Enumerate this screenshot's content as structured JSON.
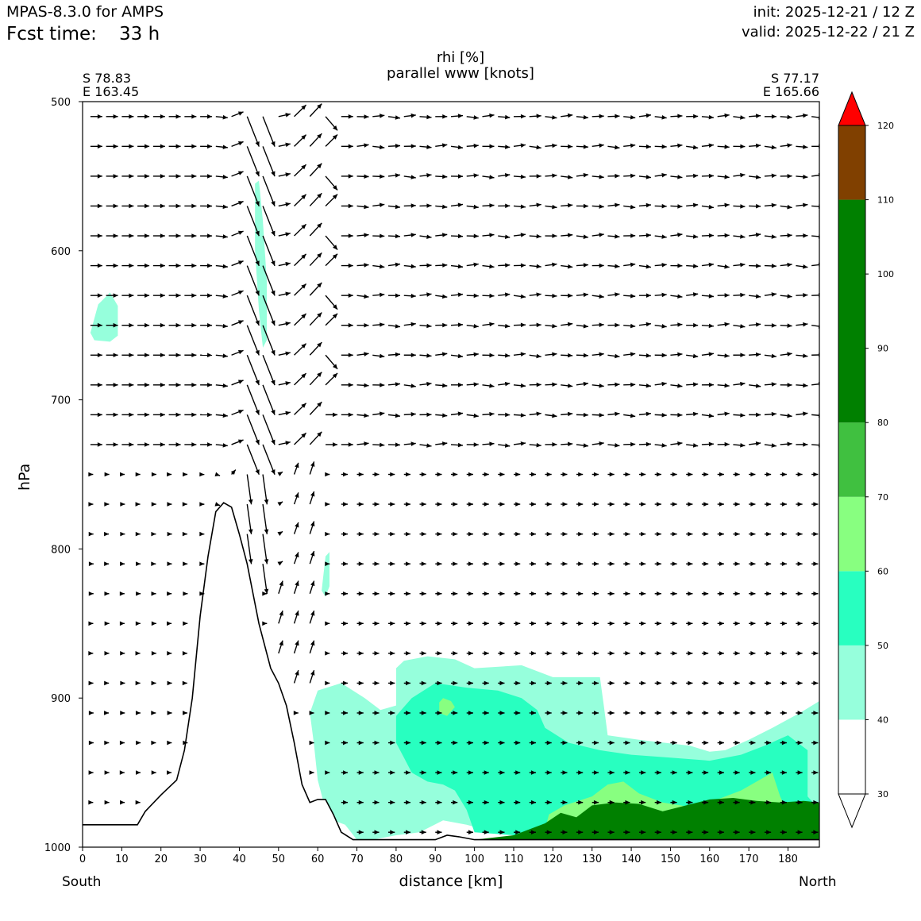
{
  "header": {
    "model": "MPAS-8.3.0 for AMPS",
    "fcst_label": "Fcst time:",
    "fcst_value": "33 h",
    "init": "init: 2025-12-21 / 12 Z",
    "valid": "valid: 2025-12-22 / 21 Z"
  },
  "chart_data": {
    "type": "cross-section",
    "title": "rhi [%]",
    "subtitle": "parallel www [knots]",
    "xlabel": "distance [km]",
    "ylabel": "hPa",
    "xlim": [
      0,
      188
    ],
    "ylim": [
      1000,
      500
    ],
    "x_ticks": [
      0,
      10,
      20,
      30,
      40,
      50,
      60,
      70,
      80,
      90,
      100,
      110,
      120,
      130,
      140,
      150,
      160,
      170,
      180
    ],
    "y_ticks": [
      500,
      600,
      700,
      800,
      900,
      1000
    ],
    "start_label": "South",
    "end_label": "North",
    "start_coord": [
      "S 78.83",
      "E 163.45"
    ],
    "end_coord": [
      "S 77.17",
      "E 165.66"
    ],
    "colorbar": {
      "levels": [
        30,
        40,
        50,
        60,
        70,
        80,
        90,
        100,
        110,
        120
      ],
      "bands": [
        {
          "from": 30,
          "to": 40,
          "color": "#ffffff"
        },
        {
          "from": 40,
          "to": 50,
          "color": "#96ffdc"
        },
        {
          "from": 50,
          "to": 60,
          "color": "#28ffc0"
        },
        {
          "from": 60,
          "to": 70,
          "color": "#88ff80"
        },
        {
          "from": 70,
          "to": 80,
          "color": "#40c040"
        },
        {
          "from": 80,
          "to": 110,
          "color": "#008000"
        },
        {
          "from": 110,
          "to": 120,
          "color": "#804000"
        },
        {
          "from": 120,
          "to": 125,
          "color": "#ff0000"
        }
      ],
      "extend_colors": {
        "low": "#ffffff",
        "high": "#ff0000"
      }
    },
    "terrain": [
      [
        0,
        985
      ],
      [
        14,
        985
      ],
      [
        16,
        976
      ],
      [
        20,
        965
      ],
      [
        24,
        955
      ],
      [
        26,
        935
      ],
      [
        28,
        900
      ],
      [
        30,
        845
      ],
      [
        32,
        805
      ],
      [
        34,
        775
      ],
      [
        36,
        769
      ],
      [
        38,
        772
      ],
      [
        40,
        790
      ],
      [
        42,
        810
      ],
      [
        45,
        850
      ],
      [
        48,
        880
      ],
      [
        50,
        890
      ],
      [
        52,
        905
      ],
      [
        54,
        930
      ],
      [
        56,
        958
      ],
      [
        58,
        970
      ],
      [
        60,
        968
      ],
      [
        62,
        968
      ],
      [
        64,
        978
      ],
      [
        66,
        990
      ],
      [
        69,
        995
      ],
      [
        90,
        995
      ],
      [
        93,
        992
      ],
      [
        96,
        993
      ],
      [
        100,
        995
      ],
      [
        188,
        995
      ]
    ],
    "rh_regions": [
      {
        "value": 45,
        "points": [
          [
            2,
            655
          ],
          [
            4,
            636
          ],
          [
            7,
            628
          ],
          [
            9,
            637
          ],
          [
            9,
            657
          ],
          [
            7,
            661
          ],
          [
            3,
            660
          ]
        ]
      },
      {
        "value": 45,
        "points": [
          [
            44,
            555
          ],
          [
            45,
            553
          ],
          [
            46,
            580
          ],
          [
            47,
            620
          ],
          [
            47,
            660
          ],
          [
            46,
            665
          ],
          [
            45,
            640
          ],
          [
            44,
            600
          ]
        ]
      },
      {
        "value": 45,
        "points": [
          [
            62,
            805
          ],
          [
            63,
            802
          ],
          [
            63,
            825
          ],
          [
            62,
            832
          ],
          [
            61,
            828
          ]
        ]
      },
      {
        "value": 45,
        "points": [
          [
            60,
            895
          ],
          [
            66,
            890
          ],
          [
            72,
            900
          ],
          [
            76,
            908
          ],
          [
            80,
            905
          ],
          [
            80,
            880
          ],
          [
            82,
            875
          ],
          [
            88,
            872
          ],
          [
            95,
            874
          ],
          [
            100,
            880
          ],
          [
            112,
            878
          ],
          [
            120,
            886
          ],
          [
            132,
            886
          ],
          [
            133,
            905
          ],
          [
            134,
            925
          ],
          [
            142,
            928
          ],
          [
            155,
            932
          ],
          [
            160,
            936
          ],
          [
            164,
            935
          ],
          [
            170,
            928
          ],
          [
            176,
            920
          ],
          [
            183,
            910
          ],
          [
            188,
            902
          ],
          [
            188,
            985
          ],
          [
            182,
            990
          ],
          [
            176,
            991
          ],
          [
            140,
            992
          ],
          [
            116,
            990
          ],
          [
            105,
            990
          ],
          [
            98,
            985
          ],
          [
            92,
            982
          ],
          [
            86,
            990
          ],
          [
            80,
            992
          ],
          [
            74,
            995
          ],
          [
            70,
            995
          ],
          [
            67,
            985
          ],
          [
            64,
            982
          ],
          [
            62,
            975
          ],
          [
            60,
            955
          ],
          [
            59,
            930
          ],
          [
            58,
            910
          ]
        ]
      },
      {
        "value": 55,
        "points": [
          [
            80,
            912
          ],
          [
            84,
            900
          ],
          [
            90,
            890
          ],
          [
            98,
            893
          ],
          [
            106,
            895
          ],
          [
            112,
            900
          ],
          [
            116,
            908
          ],
          [
            118,
            920
          ],
          [
            124,
            930
          ],
          [
            132,
            935
          ],
          [
            140,
            938
          ],
          [
            150,
            940
          ],
          [
            160,
            942
          ],
          [
            168,
            938
          ],
          [
            174,
            932
          ],
          [
            180,
            925
          ],
          [
            185,
            935
          ],
          [
            185,
            966
          ],
          [
            188,
            975
          ],
          [
            188,
            992
          ],
          [
            150,
            994
          ],
          [
            120,
            994
          ],
          [
            110,
            992
          ],
          [
            100,
            990
          ],
          [
            98,
            975
          ],
          [
            95,
            962
          ],
          [
            92,
            958
          ],
          [
            88,
            956
          ],
          [
            84,
            950
          ],
          [
            82,
            940
          ],
          [
            80,
            930
          ]
        ]
      },
      {
        "value": 65,
        "points": [
          [
            118,
            988
          ],
          [
            119,
            978
          ],
          [
            123,
            972
          ],
          [
            130,
            966
          ],
          [
            134,
            958
          ],
          [
            138,
            956
          ],
          [
            142,
            964
          ],
          [
            148,
            970
          ],
          [
            155,
            973
          ],
          [
            162,
            968
          ],
          [
            168,
            962
          ],
          [
            172,
            956
          ],
          [
            176,
            950
          ],
          [
            178,
            966
          ],
          [
            180,
            977
          ],
          [
            182,
            988
          ]
        ]
      },
      {
        "value": 65,
        "points": [
          [
            91,
            903
          ],
          [
            92,
            900
          ],
          [
            94,
            902
          ],
          [
            95,
            906
          ],
          [
            93,
            912
          ],
          [
            91,
            910
          ]
        ]
      },
      {
        "value": 85,
        "points": [
          [
            100,
            995
          ],
          [
            110,
            992
          ],
          [
            118,
            984
          ],
          [
            122,
            977
          ],
          [
            126,
            980
          ],
          [
            130,
            972
          ],
          [
            136,
            970
          ],
          [
            142,
            971
          ],
          [
            148,
            976
          ],
          [
            154,
            972
          ],
          [
            160,
            968
          ],
          [
            166,
            967
          ],
          [
            172,
            969
          ],
          [
            178,
            970
          ],
          [
            184,
            969
          ],
          [
            188,
            970
          ],
          [
            188,
            995
          ]
        ]
      }
    ],
    "wind_scale_note": "arrows show parallel wind (knots) and vertical motion",
    "wind_levels": [
      510,
      530,
      550,
      570,
      590,
      610,
      630,
      650,
      670,
      690,
      710,
      730,
      750,
      770,
      790,
      810,
      830,
      850,
      870,
      890,
      910,
      930,
      950,
      970,
      990
    ],
    "wind_columns_km": [
      2,
      6,
      10,
      14,
      18,
      22,
      26,
      30,
      34,
      38,
      42,
      46,
      50,
      54,
      58,
      62,
      66,
      70,
      74,
      78,
      82,
      86,
      90,
      94,
      98,
      102,
      106,
      110,
      114,
      118,
      122,
      126,
      130,
      134,
      138,
      142,
      146,
      150,
      154,
      158,
      162,
      166,
      170,
      174,
      178,
      182,
      186
    ]
  }
}
